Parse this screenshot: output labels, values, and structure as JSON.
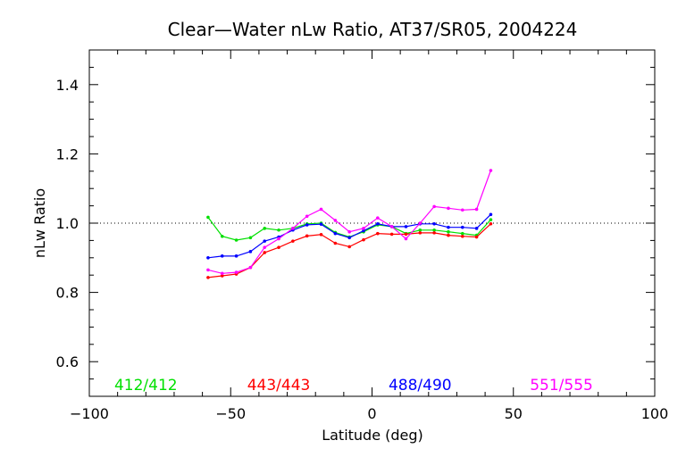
{
  "chart_data": {
    "type": "line",
    "title": "Clear—Water nLw Ratio, AT37/SR05, 2004224",
    "xlabel": "Latitude (deg)",
    "ylabel": "nLw Ratio",
    "xlim": [
      -100,
      100
    ],
    "ylim": [
      0.5,
      1.5
    ],
    "x_ticks": [
      -100,
      -50,
      0,
      50,
      100
    ],
    "x_tick_labels": [
      "−100",
      "−50",
      "0",
      "50",
      "100"
    ],
    "y_ticks": [
      0.6,
      0.8,
      1.0,
      1.2,
      1.4
    ],
    "y_tick_labels": [
      "0.6",
      "0.8",
      "1.0",
      "1.2",
      "1.4"
    ],
    "reference_line": {
      "y": 1.0,
      "style": "dotted"
    },
    "grid": false,
    "legend_placement": "bottom inside plot",
    "x": [
      -58,
      -53,
      -48,
      -43,
      -38,
      -33,
      -28,
      -23,
      -18,
      -13,
      -8,
      -3,
      2,
      7,
      12,
      17,
      22,
      27,
      32,
      37,
      42
    ],
    "series": [
      {
        "name": "412/412",
        "color": "#00e000",
        "values": [
          1.017,
          0.962,
          0.951,
          0.958,
          0.985,
          0.98,
          0.985,
          0.998,
          1.0,
          0.973,
          0.96,
          0.975,
          0.995,
          0.99,
          0.97,
          0.98,
          0.98,
          0.975,
          0.97,
          0.965,
          1.01
        ]
      },
      {
        "name": "443/443",
        "color": "#ff0000",
        "values": [
          0.843,
          0.848,
          0.853,
          0.872,
          0.915,
          0.93,
          0.948,
          0.963,
          0.967,
          0.942,
          0.932,
          0.952,
          0.97,
          0.968,
          0.968,
          0.972,
          0.972,
          0.965,
          0.962,
          0.96,
          0.998
        ]
      },
      {
        "name": "488/490",
        "color": "#0000ff",
        "values": [
          0.9,
          0.905,
          0.905,
          0.918,
          0.948,
          0.96,
          0.98,
          0.995,
          0.997,
          0.97,
          0.958,
          0.978,
          0.998,
          0.99,
          0.99,
          0.998,
          0.998,
          0.988,
          0.988,
          0.985,
          1.025
        ]
      },
      {
        "name": "551/555",
        "color": "#ff00ff",
        "values": [
          0.865,
          0.855,
          0.858,
          0.872,
          0.93,
          0.955,
          0.985,
          1.02,
          1.04,
          1.008,
          0.975,
          0.985,
          1.015,
          0.99,
          0.955,
          1.0,
          1.048,
          1.043,
          1.038,
          1.04,
          1.152
        ]
      }
    ]
  }
}
